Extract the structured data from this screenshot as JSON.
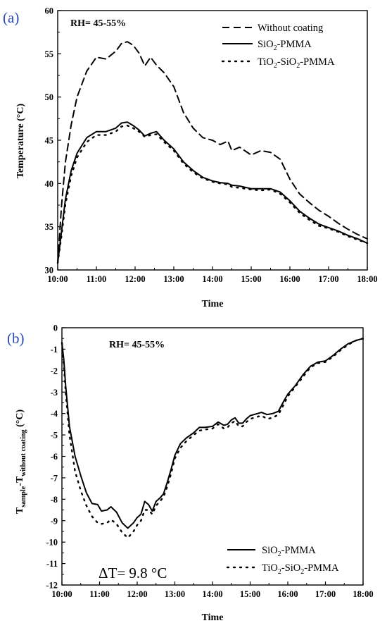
{
  "chart_data": [
    {
      "type": "line",
      "panel_label": "(a)",
      "annotation": "RH= 45-55%",
      "xlabel": "Time",
      "ylabel": "Temperature (°C)",
      "xlim": [
        10,
        18
      ],
      "ylim": [
        30,
        60
      ],
      "x_ticks": [
        "10:00",
        "11:00",
        "12:00",
        "13:00",
        "14:00",
        "15:00",
        "16:00",
        "17:00",
        "18:00"
      ],
      "y_ticks": [
        30,
        35,
        40,
        45,
        50,
        55,
        60
      ],
      "legend_position": "top-right",
      "series": [
        {
          "name": "Without coating",
          "style": "dashed",
          "x": [
            10.0,
            10.1,
            10.2,
            10.35,
            10.5,
            10.75,
            11.0,
            11.25,
            11.5,
            11.65,
            11.8,
            11.95,
            12.1,
            12.25,
            12.4,
            12.55,
            12.75,
            13.0,
            13.25,
            13.5,
            13.75,
            14.0,
            14.2,
            14.4,
            14.5,
            14.7,
            15.0,
            15.25,
            15.5,
            15.75,
            16.0,
            16.25,
            16.5,
            16.75,
            17.0,
            17.25,
            17.5,
            17.75,
            18.0
          ],
          "values": [
            30.8,
            37.5,
            42.5,
            46.8,
            50.0,
            53.0,
            54.6,
            54.4,
            55.3,
            56.2,
            56.4,
            56.0,
            55.1,
            53.6,
            54.6,
            53.7,
            52.8,
            51.2,
            48.2,
            46.4,
            45.3,
            45.0,
            44.5,
            44.9,
            43.8,
            44.2,
            43.3,
            43.8,
            43.6,
            42.8,
            40.5,
            38.8,
            37.8,
            36.9,
            36.2,
            35.4,
            34.7,
            34.1,
            33.6
          ]
        },
        {
          "name": "SiO2-PMMA",
          "style": "solid",
          "x": [
            10.0,
            10.1,
            10.2,
            10.35,
            10.5,
            10.75,
            11.0,
            11.25,
            11.5,
            11.65,
            11.8,
            11.95,
            12.1,
            12.25,
            12.4,
            12.55,
            12.75,
            13.0,
            13.25,
            13.5,
            13.75,
            14.0,
            14.2,
            14.4,
            14.5,
            14.7,
            15.0,
            15.25,
            15.5,
            15.75,
            16.0,
            16.25,
            16.5,
            16.75,
            17.0,
            17.25,
            17.5,
            17.75,
            18.0
          ],
          "values": [
            30.8,
            34.5,
            38.2,
            41.5,
            43.5,
            45.3,
            46.0,
            46.0,
            46.4,
            47.0,
            47.1,
            46.7,
            46.2,
            45.5,
            45.8,
            46.0,
            45.0,
            44.0,
            42.5,
            41.5,
            40.7,
            40.3,
            40.1,
            40.0,
            39.8,
            39.7,
            39.4,
            39.4,
            39.4,
            39.0,
            38.0,
            36.8,
            36.0,
            35.3,
            34.9,
            34.5,
            34.0,
            33.6,
            33.1
          ]
        },
        {
          "name": "TiO2-SiO2-PMMA",
          "style": "dotted",
          "x": [
            10.0,
            10.1,
            10.2,
            10.35,
            10.5,
            10.75,
            11.0,
            11.25,
            11.5,
            11.65,
            11.8,
            11.95,
            12.1,
            12.25,
            12.4,
            12.55,
            12.75,
            13.0,
            13.25,
            13.5,
            13.75,
            14.0,
            14.2,
            14.4,
            14.5,
            14.7,
            15.0,
            15.25,
            15.5,
            15.75,
            16.0,
            16.25,
            16.5,
            16.75,
            17.0,
            17.25,
            17.5,
            17.75,
            18.0
          ],
          "values": [
            30.8,
            34.0,
            37.6,
            40.9,
            43.0,
            44.8,
            45.6,
            45.6,
            46.0,
            46.6,
            46.7,
            46.4,
            46.0,
            45.4,
            45.6,
            45.7,
            44.8,
            43.8,
            42.3,
            41.3,
            40.6,
            40.2,
            40.0,
            39.9,
            39.6,
            39.5,
            39.3,
            39.2,
            39.3,
            38.8,
            37.8,
            36.6,
            35.8,
            35.1,
            34.8,
            34.4,
            33.9,
            33.5,
            33.1
          ]
        }
      ]
    },
    {
      "type": "line",
      "panel_label": "(b)",
      "annotation": "RH= 45-55%",
      "delta_text": "ΔT= 9.8 °C",
      "xlabel": "Time",
      "ylabel_main": "T",
      "ylabel_sub1": "sample",
      "ylabel_mid": "-T",
      "ylabel_sub2": "without coating",
      "ylabel_unit": " (°C)",
      "xlim": [
        10,
        18
      ],
      "ylim": [
        -12,
        0
      ],
      "x_ticks": [
        "10:00",
        "11:00",
        "12:00",
        "13:00",
        "14:00",
        "15:00",
        "16:00",
        "17:00",
        "18:00"
      ],
      "y_ticks": [
        0,
        -1,
        -2,
        -3,
        -4,
        -5,
        -6,
        -7,
        -8,
        -9,
        -10,
        -11,
        -12
      ],
      "legend_position": "bottom-right",
      "series": [
        {
          "name": "SiO2-PMMA",
          "style": "solid",
          "x": [
            10.0,
            10.05,
            10.1,
            10.2,
            10.35,
            10.5,
            10.65,
            10.8,
            10.95,
            11.05,
            11.2,
            11.3,
            11.45,
            11.6,
            11.75,
            11.9,
            12.0,
            12.1,
            12.2,
            12.3,
            12.4,
            12.5,
            12.6,
            12.7,
            12.8,
            12.9,
            13.0,
            13.15,
            13.3,
            13.5,
            13.65,
            13.8,
            14.0,
            14.15,
            14.3,
            14.4,
            14.5,
            14.6,
            14.7,
            14.8,
            14.9,
            15.0,
            15.1,
            15.2,
            15.3,
            15.45,
            15.6,
            15.75,
            15.9,
            16.0,
            16.2,
            16.4,
            16.6,
            16.8,
            17.0,
            17.2,
            17.4,
            17.6,
            17.8,
            18.0
          ],
          "values": [
            -0.7,
            -1.5,
            -2.7,
            -4.6,
            -6.0,
            -6.9,
            -7.7,
            -8.2,
            -8.25,
            -8.55,
            -8.5,
            -8.35,
            -8.6,
            -9.1,
            -9.35,
            -9.1,
            -8.85,
            -8.7,
            -8.1,
            -8.25,
            -8.55,
            -8.1,
            -7.95,
            -7.75,
            -7.2,
            -6.6,
            -5.95,
            -5.4,
            -5.15,
            -4.9,
            -4.65,
            -4.65,
            -4.6,
            -4.4,
            -4.55,
            -4.5,
            -4.3,
            -4.2,
            -4.45,
            -4.45,
            -4.25,
            -4.1,
            -4.05,
            -4.0,
            -3.95,
            -4.05,
            -4.0,
            -3.9,
            -3.4,
            -3.1,
            -2.7,
            -2.2,
            -1.8,
            -1.6,
            -1.55,
            -1.3,
            -1.0,
            -0.75,
            -0.6,
            -0.5
          ]
        },
        {
          "name": "TiO2-SiO2-PMMA",
          "style": "dotted",
          "x": [
            10.0,
            10.05,
            10.1,
            10.2,
            10.35,
            10.5,
            10.65,
            10.8,
            10.95,
            11.05,
            11.2,
            11.3,
            11.45,
            11.6,
            11.75,
            11.9,
            12.0,
            12.1,
            12.2,
            12.3,
            12.4,
            12.5,
            12.6,
            12.7,
            12.8,
            12.9,
            13.0,
            13.15,
            13.3,
            13.5,
            13.65,
            13.8,
            14.0,
            14.15,
            14.3,
            14.4,
            14.5,
            14.6,
            14.7,
            14.8,
            14.9,
            15.0,
            15.1,
            15.2,
            15.3,
            15.45,
            15.6,
            15.75,
            15.9,
            16.0,
            16.2,
            16.4,
            16.6,
            16.8,
            17.0,
            17.2,
            17.4,
            17.6,
            17.8,
            18.0
          ],
          "values": [
            -0.7,
            -1.7,
            -3.0,
            -5.0,
            -6.7,
            -7.6,
            -8.3,
            -8.8,
            -9.1,
            -9.15,
            -9.1,
            -8.95,
            -9.15,
            -9.55,
            -9.8,
            -9.5,
            -9.2,
            -9.0,
            -8.5,
            -8.5,
            -8.7,
            -8.3,
            -8.1,
            -7.9,
            -7.4,
            -6.8,
            -6.1,
            -5.6,
            -5.3,
            -5.0,
            -4.8,
            -4.75,
            -4.7,
            -4.5,
            -4.7,
            -4.65,
            -4.45,
            -4.35,
            -4.6,
            -4.6,
            -4.4,
            -4.25,
            -4.2,
            -4.15,
            -4.1,
            -4.25,
            -4.2,
            -4.05,
            -3.55,
            -3.2,
            -2.75,
            -2.3,
            -1.85,
            -1.65,
            -1.6,
            -1.35,
            -1.05,
            -0.8,
            -0.6,
            -0.5
          ]
        }
      ]
    }
  ]
}
